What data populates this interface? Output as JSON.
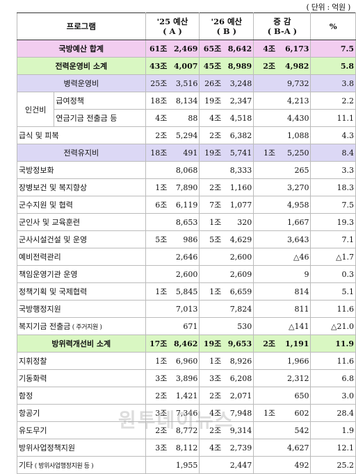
{
  "unit": "( 단위 : 억원 )",
  "header": {
    "program": "프로그램",
    "col_a": "'25 예산",
    "col_a_sub": "( A )",
    "col_b": "'26 예산",
    "col_b_sub": "( B )",
    "col_diff": "증 감",
    "col_diff_sub": "( B-A )",
    "col_pct": "%"
  },
  "group_labels": {
    "personnel": "인건비"
  },
  "rows": [
    {
      "label": "국방예산 합계",
      "a_jo": "61조",
      "a_ok": "2,469",
      "b_jo": "65조",
      "b_ok": "8,642",
      "d_jo": "4조",
      "d_ok": "6,173",
      "pct": "7.5"
    },
    {
      "label": "전력운영비 소계",
      "a_jo": "43조",
      "a_ok": "4,007",
      "b_jo": "45조",
      "b_ok": "8,989",
      "d_jo": "2조",
      "d_ok": "4,982",
      "pct": "5.8"
    },
    {
      "label": "병력운영비",
      "a_jo": "25조",
      "a_ok": "3,516",
      "b_jo": "26조",
      "b_ok": "3,248",
      "d_jo": "",
      "d_ok": "9,732",
      "pct": "3.8"
    },
    {
      "label": "급여정책",
      "a_jo": "18조",
      "a_ok": "8,134",
      "b_jo": "19조",
      "b_ok": "2,347",
      "d_jo": "",
      "d_ok": "4,213",
      "pct": "2.2"
    },
    {
      "label": "연금기금 전출금 등",
      "a_jo": "4조",
      "a_ok": "88",
      "b_jo": "4조",
      "b_ok": "4,518",
      "d_jo": "",
      "d_ok": "4,430",
      "pct": "11.1"
    },
    {
      "label": "급식 및 피복",
      "a_jo": "2조",
      "a_ok": "5,294",
      "b_jo": "2조",
      "b_ok": "6,382",
      "d_jo": "",
      "d_ok": "1,088",
      "pct": "4.3"
    },
    {
      "label": "전력유지비",
      "a_jo": "18조",
      "a_ok": "491",
      "b_jo": "19조",
      "b_ok": "5,741",
      "d_jo": "1조",
      "d_ok": "5,250",
      "pct": "8.4"
    },
    {
      "label": "국방정보화",
      "a_jo": "",
      "a_ok": "8,068",
      "b_jo": "",
      "b_ok": "8,333",
      "d_jo": "",
      "d_ok": "265",
      "pct": "3.3"
    },
    {
      "label": "장병보건 및 복지향상",
      "a_jo": "1조",
      "a_ok": "7,890",
      "b_jo": "2조",
      "b_ok": "1,160",
      "d_jo": "",
      "d_ok": "3,270",
      "pct": "18.3"
    },
    {
      "label": "군수지원 및 협력",
      "a_jo": "6조",
      "a_ok": "6,119",
      "b_jo": "7조",
      "b_ok": "1,077",
      "d_jo": "",
      "d_ok": "4,958",
      "pct": "7.5"
    },
    {
      "label": "군인사 및 교육훈련",
      "a_jo": "",
      "a_ok": "8,653",
      "b_jo": "1조",
      "b_ok": "320",
      "d_jo": "",
      "d_ok": "1,667",
      "pct": "19.3"
    },
    {
      "label": "군사시설건설 및 운영",
      "a_jo": "5조",
      "a_ok": "986",
      "b_jo": "5조",
      "b_ok": "4,629",
      "d_jo": "",
      "d_ok": "3,643",
      "pct": "7.1"
    },
    {
      "label": "예비전력관리",
      "a_jo": "",
      "a_ok": "2,646",
      "b_jo": "",
      "b_ok": "2,600",
      "d_jo": "",
      "d_ok": "△46",
      "pct": "△1.7"
    },
    {
      "label": "책임운영기관 운영",
      "a_jo": "",
      "a_ok": "2,600",
      "b_jo": "",
      "b_ok": "2,609",
      "d_jo": "",
      "d_ok": "9",
      "pct": "0.3"
    },
    {
      "label": "정책기획 및 국제협력",
      "a_jo": "1조",
      "a_ok": "5,845",
      "b_jo": "1조",
      "b_ok": "6,659",
      "d_jo": "",
      "d_ok": "814",
      "pct": "5.1"
    },
    {
      "label": "국방행정지원",
      "a_jo": "",
      "a_ok": "7,013",
      "b_jo": "",
      "b_ok": "7,824",
      "d_jo": "",
      "d_ok": "811",
      "pct": "11.6"
    },
    {
      "label": "복지기금 전출금",
      "label_note": "( 주거지원 )",
      "a_jo": "",
      "a_ok": "671",
      "b_jo": "",
      "b_ok": "530",
      "d_jo": "",
      "d_ok": "△141",
      "pct": "△21.0"
    },
    {
      "label": "방위력개선비 소계",
      "a_jo": "17조",
      "a_ok": "8,462",
      "b_jo": "19조",
      "b_ok": "9,653",
      "d_jo": "2조",
      "d_ok": "1,191",
      "pct": "11.9"
    },
    {
      "label": "지휘정찰",
      "a_jo": "1조",
      "a_ok": "6,960",
      "b_jo": "1조",
      "b_ok": "8,926",
      "d_jo": "",
      "d_ok": "1,966",
      "pct": "11.6"
    },
    {
      "label": "기동화력",
      "a_jo": "3조",
      "a_ok": "3,896",
      "b_jo": "3조",
      "b_ok": "6,208",
      "d_jo": "",
      "d_ok": "2,312",
      "pct": "6.8"
    },
    {
      "label": "함정",
      "a_jo": "2조",
      "a_ok": "1,421",
      "b_jo": "2조",
      "b_ok": "2,071",
      "d_jo": "",
      "d_ok": "650",
      "pct": "3.0"
    },
    {
      "label": "항공기",
      "a_jo": "3조",
      "a_ok": "7,346",
      "b_jo": "4조",
      "b_ok": "7,948",
      "d_jo": "1조",
      "d_ok": "602",
      "pct": "28.4"
    },
    {
      "label": "유도무기",
      "a_jo": "2조",
      "a_ok": "8,772",
      "b_jo": "2조",
      "b_ok": "9,314",
      "d_jo": "",
      "d_ok": "542",
      "pct": "1.9"
    },
    {
      "label": "방위사업정책지원",
      "a_jo": "3조",
      "a_ok": "8,112",
      "b_jo": "4조",
      "b_ok": "2,739",
      "d_jo": "",
      "d_ok": "4,627",
      "pct": "12.1"
    },
    {
      "label": "기타",
      "label_note": "( 방위사업행정지원 등 )",
      "a_jo": "",
      "a_ok": "1,955",
      "b_jo": "",
      "b_ok": "2,447",
      "d_jo": "",
      "d_ok": "492",
      "pct": "25.2"
    }
  ],
  "watermark": "원투데이뉴스"
}
